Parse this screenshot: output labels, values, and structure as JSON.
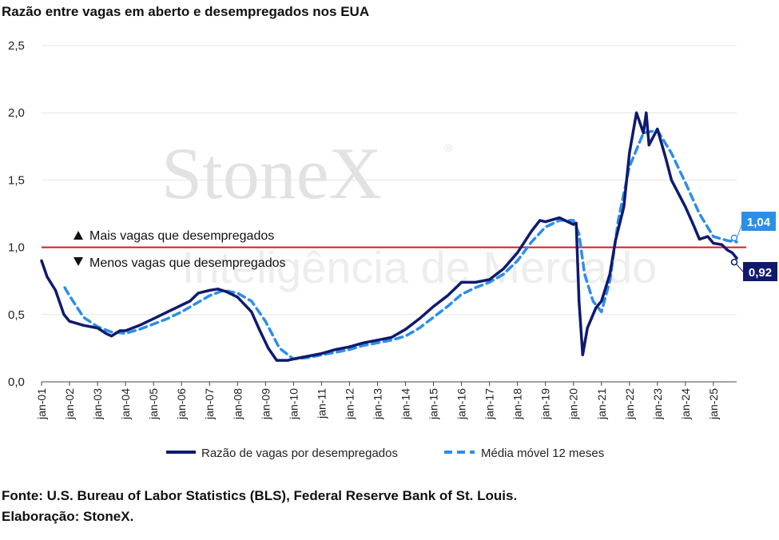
{
  "chart_data": {
    "type": "line",
    "title": "Razão entre vagas em aberto e desempregados nos EUA",
    "ylim": [
      0,
      2.5
    ],
    "yticks": [
      0,
      0.5,
      1,
      1.5,
      2,
      2.5
    ],
    "ytick_labels": [
      "0,0",
      "0,5",
      "1,0",
      "1,5",
      "2,0",
      "2,5"
    ],
    "xticks": [
      "jan-01",
      "jan-02",
      "jan-03",
      "jan-04",
      "jan-05",
      "jan-06",
      "jan-07",
      "jan-08",
      "jan-09",
      "jan-10",
      "jan-11",
      "jan-12",
      "jan-13",
      "jan-14",
      "jan-15",
      "jan-16",
      "jan-17",
      "jan-18",
      "jan-19",
      "jan-20",
      "jan-21",
      "jan-22",
      "jan-23",
      "jan-24",
      "jan-25"
    ],
    "xrange": [
      2001.0,
      2025.83
    ],
    "reference_line": {
      "y": 1.0,
      "color": "#e0141e"
    },
    "series": [
      {
        "name": "Razão de vagas por desempregados",
        "color": "#0f1a6e",
        "style": "solid",
        "points": [
          [
            2001.0,
            0.9
          ],
          [
            2001.2,
            0.78
          ],
          [
            2001.5,
            0.68
          ],
          [
            2001.8,
            0.5
          ],
          [
            2002.0,
            0.45
          ],
          [
            2002.5,
            0.42
          ],
          [
            2003.0,
            0.4
          ],
          [
            2003.3,
            0.36
          ],
          [
            2003.5,
            0.34
          ],
          [
            2003.8,
            0.38
          ],
          [
            2004.0,
            0.38
          ],
          [
            2004.5,
            0.42
          ],
          [
            2005.0,
            0.47
          ],
          [
            2005.5,
            0.52
          ],
          [
            2006.0,
            0.57
          ],
          [
            2006.3,
            0.6
          ],
          [
            2006.6,
            0.66
          ],
          [
            2007.0,
            0.68
          ],
          [
            2007.3,
            0.69
          ],
          [
            2007.6,
            0.67
          ],
          [
            2008.0,
            0.63
          ],
          [
            2008.5,
            0.52
          ],
          [
            2008.8,
            0.38
          ],
          [
            2009.1,
            0.25
          ],
          [
            2009.4,
            0.16
          ],
          [
            2009.8,
            0.16
          ],
          [
            2010.0,
            0.17
          ],
          [
            2010.5,
            0.19
          ],
          [
            2011.0,
            0.21
          ],
          [
            2011.5,
            0.24
          ],
          [
            2012.0,
            0.26
          ],
          [
            2012.5,
            0.29
          ],
          [
            2013.0,
            0.31
          ],
          [
            2013.5,
            0.33
          ],
          [
            2014.0,
            0.39
          ],
          [
            2014.5,
            0.47
          ],
          [
            2015.0,
            0.56
          ],
          [
            2015.5,
            0.64
          ],
          [
            2016.0,
            0.74
          ],
          [
            2016.5,
            0.74
          ],
          [
            2017.0,
            0.76
          ],
          [
            2017.5,
            0.84
          ],
          [
            2018.0,
            0.96
          ],
          [
            2018.5,
            1.12
          ],
          [
            2018.8,
            1.2
          ],
          [
            2019.0,
            1.19
          ],
          [
            2019.5,
            1.22
          ],
          [
            2020.0,
            1.17
          ],
          [
            2020.1,
            1.18
          ],
          [
            2020.2,
            0.6
          ],
          [
            2020.33,
            0.2
          ],
          [
            2020.5,
            0.4
          ],
          [
            2020.8,
            0.55
          ],
          [
            2021.0,
            0.6
          ],
          [
            2021.3,
            0.8
          ],
          [
            2021.5,
            1.05
          ],
          [
            2021.8,
            1.3
          ],
          [
            2022.0,
            1.7
          ],
          [
            2022.25,
            2.0
          ],
          [
            2022.5,
            1.85
          ],
          [
            2022.6,
            2.0
          ],
          [
            2022.7,
            1.76
          ],
          [
            2023.0,
            1.88
          ],
          [
            2023.3,
            1.66
          ],
          [
            2023.5,
            1.5
          ],
          [
            2023.8,
            1.38
          ],
          [
            2024.0,
            1.3
          ],
          [
            2024.3,
            1.16
          ],
          [
            2024.5,
            1.06
          ],
          [
            2024.8,
            1.08
          ],
          [
            2025.0,
            1.03
          ],
          [
            2025.3,
            1.02
          ],
          [
            2025.5,
            0.98
          ],
          [
            2025.67,
            0.96
          ],
          [
            2025.83,
            0.92
          ]
        ]
      },
      {
        "name": "Média móvel 12 meses",
        "color": "#2c8ee8",
        "style": "dashed",
        "points": [
          [
            2001.83,
            0.7
          ],
          [
            2002.0,
            0.64
          ],
          [
            2002.5,
            0.48
          ],
          [
            2003.0,
            0.41
          ],
          [
            2003.5,
            0.37
          ],
          [
            2004.0,
            0.36
          ],
          [
            2004.5,
            0.39
          ],
          [
            2005.0,
            0.43
          ],
          [
            2005.5,
            0.47
          ],
          [
            2006.0,
            0.52
          ],
          [
            2006.5,
            0.58
          ],
          [
            2007.0,
            0.64
          ],
          [
            2007.5,
            0.68
          ],
          [
            2008.0,
            0.66
          ],
          [
            2008.5,
            0.6
          ],
          [
            2009.0,
            0.45
          ],
          [
            2009.5,
            0.25
          ],
          [
            2010.0,
            0.17
          ],
          [
            2010.5,
            0.18
          ],
          [
            2011.0,
            0.2
          ],
          [
            2011.5,
            0.22
          ],
          [
            2012.0,
            0.24
          ],
          [
            2012.5,
            0.27
          ],
          [
            2013.0,
            0.29
          ],
          [
            2013.5,
            0.31
          ],
          [
            2014.0,
            0.34
          ],
          [
            2014.5,
            0.4
          ],
          [
            2015.0,
            0.48
          ],
          [
            2015.5,
            0.56
          ],
          [
            2016.0,
            0.65
          ],
          [
            2016.5,
            0.7
          ],
          [
            2017.0,
            0.74
          ],
          [
            2017.5,
            0.8
          ],
          [
            2018.0,
            0.9
          ],
          [
            2018.5,
            1.04
          ],
          [
            2019.0,
            1.15
          ],
          [
            2019.5,
            1.2
          ],
          [
            2020.0,
            1.2
          ],
          [
            2020.2,
            1.1
          ],
          [
            2020.4,
            0.8
          ],
          [
            2020.7,
            0.6
          ],
          [
            2021.0,
            0.52
          ],
          [
            2021.3,
            0.75
          ],
          [
            2021.6,
            1.2
          ],
          [
            2022.0,
            1.6
          ],
          [
            2022.5,
            1.85
          ],
          [
            2023.0,
            1.87
          ],
          [
            2023.5,
            1.7
          ],
          [
            2024.0,
            1.48
          ],
          [
            2024.5,
            1.25
          ],
          [
            2025.0,
            1.08
          ],
          [
            2025.5,
            1.05
          ],
          [
            2025.83,
            1.04
          ]
        ]
      }
    ],
    "end_labels": [
      {
        "text": "1,04",
        "value": 1.04,
        "color": "#2c8ee8"
      },
      {
        "text": "0,92",
        "value": 0.92,
        "color": "#0f1a6e"
      }
    ],
    "annotations": {
      "above": "Mais vagas que desempregados",
      "below": "Menos vagas que desempregados"
    },
    "legend_placement": "bottom",
    "watermark": {
      "brand": "StoneX",
      "tagline": "Inteligência de Mercado"
    }
  },
  "footer": {
    "source": "Fonte: U.S. Bureau of Labor Statistics (BLS), Federal Reserve Bank of St. Louis.",
    "credit": "Elaboração: StoneX."
  }
}
